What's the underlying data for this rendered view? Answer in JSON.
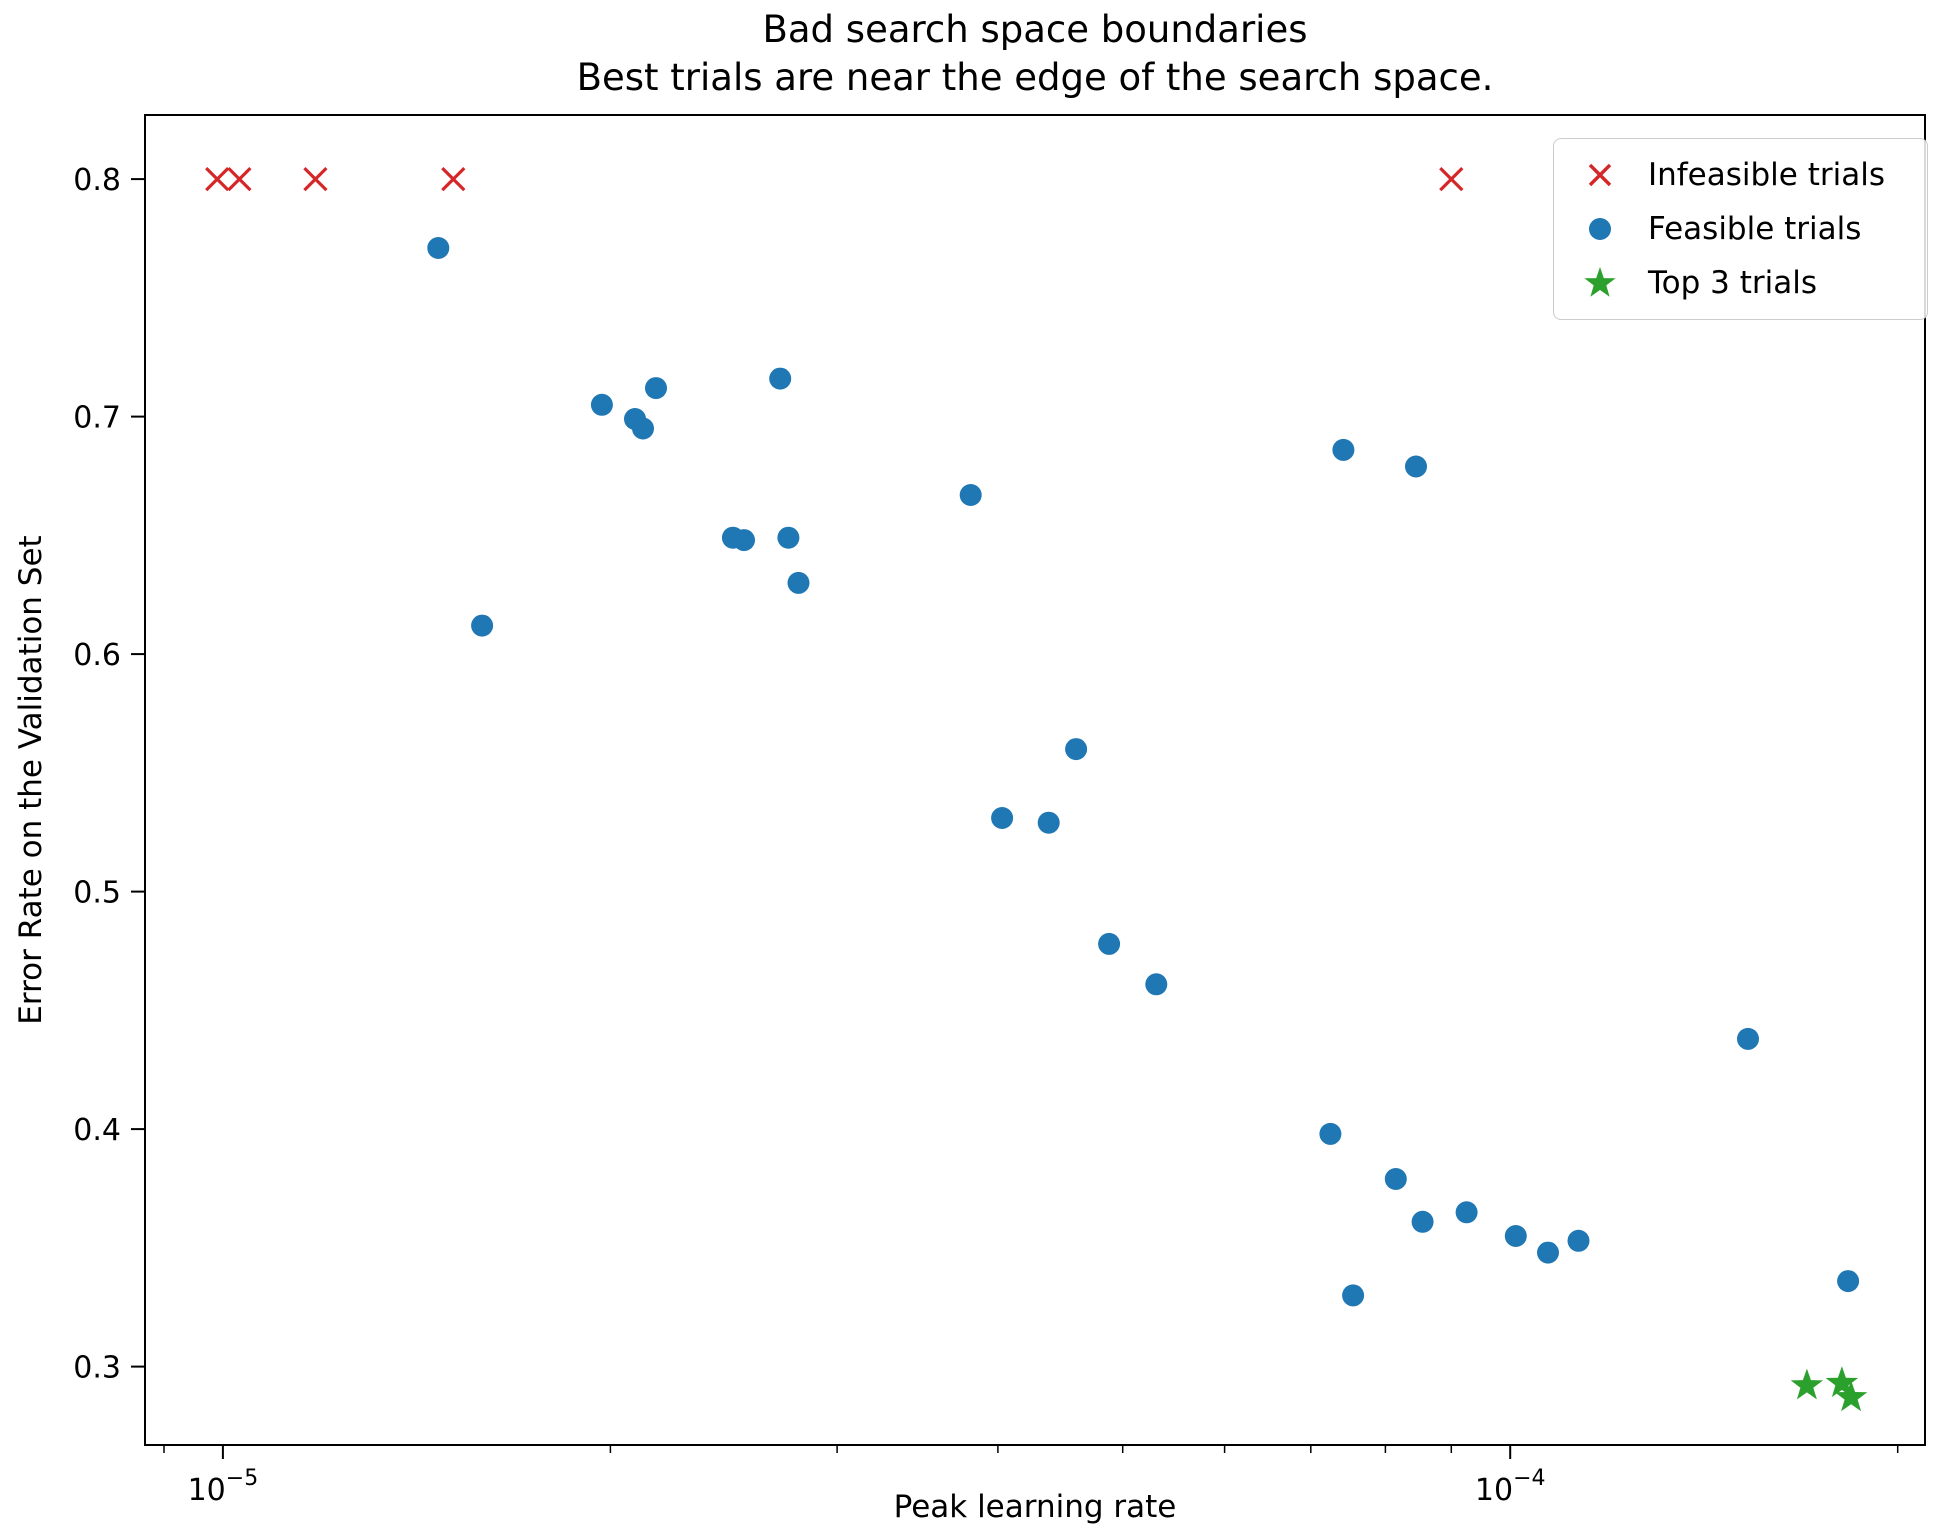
{
  "title": {
    "line1": "Bad search space boundaries",
    "line2": "Best trials are near the edge of the search space."
  },
  "axes": {
    "x_label": "Peak learning rate",
    "y_label": "Error Rate on the Validation Set"
  },
  "legend": {
    "items": [
      {
        "label": "Infeasible trials",
        "marker": "x",
        "color": "#d62728"
      },
      {
        "label": "Feasible trials",
        "marker": "circle",
        "color": "#1f77b4"
      },
      {
        "label": "Top 3 trials",
        "marker": "star",
        "color": "#2ca02c"
      }
    ]
  },
  "chart_data": {
    "type": "scatter",
    "title": "Bad search space boundaries\nBest trials are near the edge of the search space.",
    "xlabel": "Peak learning rate",
    "ylabel": "Error Rate on the Validation Set",
    "xscale": "log",
    "xlim": [
      8.7e-06,
      0.00021
    ],
    "ylim": [
      0.267,
      0.827
    ],
    "grid": false,
    "legend_position": "upper right",
    "x_major_ticks": [
      {
        "value": 1e-05,
        "base": "10",
        "exp": "−5"
      },
      {
        "value": 0.0001,
        "base": "10",
        "exp": "−4"
      }
    ],
    "x_minor_ticks": [
      9e-06,
      2e-05,
      3e-05,
      4e-05,
      5e-05,
      6e-05,
      7e-05,
      8e-05,
      9e-05,
      0.0002
    ],
    "y_ticks": [
      0.3,
      0.4,
      0.5,
      0.6,
      0.7,
      0.8
    ],
    "series": [
      {
        "name": "Infeasible trials",
        "marker": "x",
        "color": "#d62728",
        "points": [
          [
            9.9e-06,
            0.8
          ],
          [
            1.03e-05,
            0.8
          ],
          [
            1.18e-05,
            0.8
          ],
          [
            1.51e-05,
            0.8
          ],
          [
            9e-05,
            0.8
          ]
        ]
      },
      {
        "name": "Feasible trials",
        "marker": "circle",
        "color": "#1f77b4",
        "points": [
          [
            1.47e-05,
            0.771
          ],
          [
            1.59e-05,
            0.612
          ],
          [
            1.97e-05,
            0.705
          ],
          [
            2.09e-05,
            0.699
          ],
          [
            2.12e-05,
            0.695
          ],
          [
            2.17e-05,
            0.712
          ],
          [
            2.49e-05,
            0.649
          ],
          [
            2.54e-05,
            0.648
          ],
          [
            2.71e-05,
            0.716
          ],
          [
            2.75e-05,
            0.649
          ],
          [
            2.8e-05,
            0.63
          ],
          [
            3.81e-05,
            0.667
          ],
          [
            4.03e-05,
            0.531
          ],
          [
            4.38e-05,
            0.529
          ],
          [
            4.6e-05,
            0.56
          ],
          [
            4.88e-05,
            0.478
          ],
          [
            5.31e-05,
            0.461
          ],
          [
            7.42e-05,
            0.686
          ],
          [
            8.45e-05,
            0.679
          ],
          [
            7.25e-05,
            0.398
          ],
          [
            8.15e-05,
            0.379
          ],
          [
            8.55e-05,
            0.361
          ],
          [
            9.25e-05,
            0.365
          ],
          [
            0.000101,
            0.355
          ],
          [
            0.000107,
            0.348
          ],
          [
            0.000113,
            0.353
          ],
          [
            7.55e-05,
            0.33
          ],
          [
            0.000153,
            0.438
          ],
          [
            0.000183,
            0.336
          ]
        ]
      },
      {
        "name": "Top 3 trials",
        "marker": "star",
        "color": "#2ca02c",
        "points": [
          [
            0.00017,
            0.292
          ],
          [
            0.000181,
            0.293
          ],
          [
            0.000184,
            0.287
          ]
        ]
      }
    ]
  }
}
